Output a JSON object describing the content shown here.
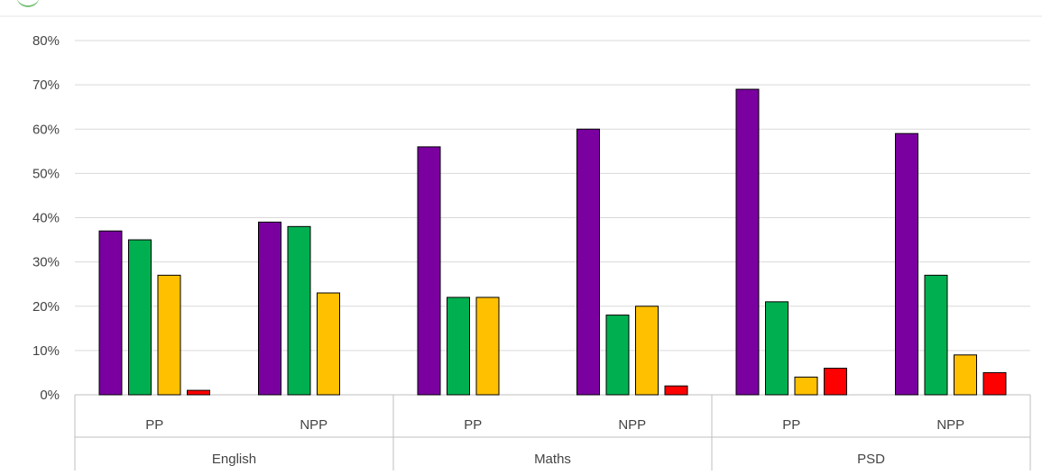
{
  "chart_data": {
    "type": "bar",
    "ylim": [
      0,
      0.8
    ],
    "yticks": [
      0,
      0.1,
      0.2,
      0.3,
      0.4,
      0.5,
      0.6,
      0.7,
      0.8
    ],
    "ytick_labels": [
      "0%",
      "10%",
      "20%",
      "30%",
      "40%",
      "50%",
      "60%",
      "70%",
      "80%"
    ],
    "grid": true,
    "legend": "none",
    "groups": [
      {
        "label": "English",
        "categories": [
          "PP",
          "NPP"
        ]
      },
      {
        "label": "Maths",
        "categories": [
          "PP",
          "NPP"
        ]
      },
      {
        "label": "PSD",
        "categories": [
          "PP",
          "NPP"
        ]
      }
    ],
    "categories": [
      "PP",
      "NPP",
      "PP",
      "NPP",
      "PP",
      "NPP"
    ],
    "series": [
      {
        "color": "#7a00a0",
        "values": [
          0.37,
          0.39,
          0.56,
          0.6,
          0.69,
          0.59
        ]
      },
      {
        "color": "#00b050",
        "values": [
          0.35,
          0.38,
          0.22,
          0.18,
          0.21,
          0.27
        ]
      },
      {
        "color": "#ffc000",
        "values": [
          0.27,
          0.23,
          0.22,
          0.2,
          0.04,
          0.09
        ]
      },
      {
        "color": "#ff0000",
        "values": [
          0.01,
          0.0,
          0.0,
          0.02,
          0.06,
          0.05
        ]
      }
    ],
    "colors": {
      "gridline": "#d9d9d9",
      "axis": "#bfbfbf",
      "bar_outline": "#000000",
      "text": "#444444"
    }
  }
}
